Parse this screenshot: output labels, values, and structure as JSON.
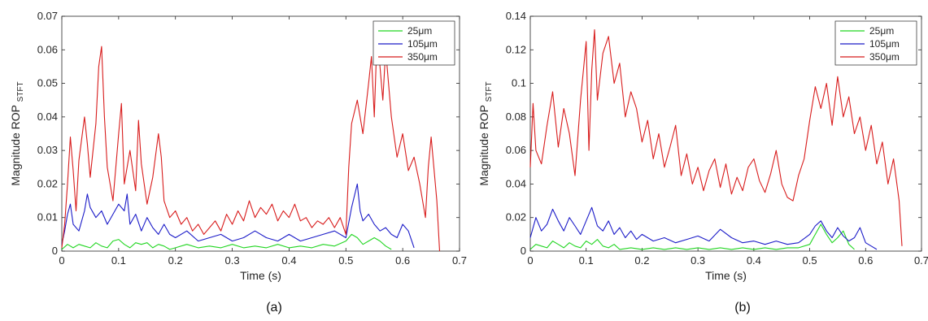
{
  "chart_data": [
    {
      "type": "line",
      "panel_label": "(a)",
      "xlabel": "Time (s)",
      "ylabel": "Magnitude ROP",
      "ylabel_sub": "STFT",
      "xlim": [
        0,
        0.7
      ],
      "ylim": [
        0,
        0.07
      ],
      "xticks": [
        0,
        0.1,
        0.2,
        0.3,
        0.4,
        0.5,
        0.6,
        0.7
      ],
      "xtick_labels": [
        "0",
        "0.1",
        "0.2",
        "0.3",
        "0.4",
        "0.5",
        "0.6",
        "0.7"
      ],
      "yticks": [
        0,
        0.01,
        0.02,
        0.03,
        0.04,
        0.05,
        0.06,
        0.07
      ],
      "ytick_labels": [
        "0",
        "0.01",
        "0.02",
        "0.03",
        "0.04",
        "0.05",
        "0.06",
        "0.07"
      ],
      "grid": false,
      "legend_position": "top-right",
      "series": [
        {
          "name": "25μm",
          "color": "#22d622",
          "x": [
            0,
            0.01,
            0.02,
            0.03,
            0.04,
            0.05,
            0.06,
            0.07,
            0.08,
            0.09,
            0.1,
            0.11,
            0.12,
            0.13,
            0.14,
            0.15,
            0.16,
            0.17,
            0.18,
            0.19,
            0.2,
            0.22,
            0.24,
            0.26,
            0.28,
            0.3,
            0.32,
            0.34,
            0.36,
            0.38,
            0.4,
            0.42,
            0.44,
            0.46,
            0.48,
            0.5,
            0.51,
            0.52,
            0.53,
            0.54,
            0.55,
            0.56,
            0.57,
            0.58
          ],
          "y": [
            0.0005,
            0.002,
            0.001,
            0.002,
            0.0015,
            0.001,
            0.0025,
            0.0015,
            0.001,
            0.003,
            0.0035,
            0.002,
            0.001,
            0.0025,
            0.002,
            0.0025,
            0.001,
            0.002,
            0.0015,
            0.0005,
            0.001,
            0.002,
            0.001,
            0.0015,
            0.001,
            0.002,
            0.001,
            0.0015,
            0.001,
            0.002,
            0.001,
            0.0015,
            0.001,
            0.002,
            0.0015,
            0.003,
            0.005,
            0.004,
            0.002,
            0.003,
            0.004,
            0.003,
            0.0015,
            0.0005
          ]
        },
        {
          "name": "105μm",
          "color": "#1c1cc8",
          "x": [
            0,
            0.005,
            0.01,
            0.015,
            0.02,
            0.03,
            0.04,
            0.045,
            0.05,
            0.06,
            0.07,
            0.08,
            0.09,
            0.1,
            0.11,
            0.115,
            0.12,
            0.13,
            0.14,
            0.15,
            0.16,
            0.17,
            0.18,
            0.19,
            0.2,
            0.22,
            0.24,
            0.26,
            0.28,
            0.3,
            0.32,
            0.34,
            0.36,
            0.38,
            0.4,
            0.42,
            0.44,
            0.46,
            0.48,
            0.5,
            0.51,
            0.52,
            0.525,
            0.53,
            0.54,
            0.55,
            0.56,
            0.57,
            0.58,
            0.59,
            0.6,
            0.61,
            0.62
          ],
          "y": [
            0.002,
            0.006,
            0.011,
            0.014,
            0.008,
            0.006,
            0.012,
            0.017,
            0.013,
            0.01,
            0.012,
            0.008,
            0.011,
            0.014,
            0.012,
            0.017,
            0.008,
            0.011,
            0.006,
            0.01,
            0.007,
            0.005,
            0.008,
            0.005,
            0.004,
            0.006,
            0.003,
            0.004,
            0.005,
            0.003,
            0.004,
            0.006,
            0.004,
            0.003,
            0.005,
            0.003,
            0.004,
            0.005,
            0.006,
            0.004,
            0.013,
            0.02,
            0.012,
            0.009,
            0.011,
            0.008,
            0.006,
            0.007,
            0.005,
            0.004,
            0.008,
            0.006,
            0.001
          ]
        },
        {
          "name": "350μm",
          "color": "#d81c1c",
          "x": [
            0,
            0.005,
            0.01,
            0.015,
            0.02,
            0.025,
            0.03,
            0.04,
            0.045,
            0.05,
            0.06,
            0.065,
            0.07,
            0.075,
            0.08,
            0.09,
            0.1,
            0.105,
            0.11,
            0.12,
            0.13,
            0.135,
            0.14,
            0.15,
            0.16,
            0.17,
            0.175,
            0.18,
            0.19,
            0.2,
            0.21,
            0.22,
            0.23,
            0.24,
            0.25,
            0.26,
            0.27,
            0.28,
            0.29,
            0.3,
            0.31,
            0.32,
            0.33,
            0.34,
            0.35,
            0.36,
            0.37,
            0.38,
            0.39,
            0.4,
            0.41,
            0.42,
            0.43,
            0.44,
            0.45,
            0.46,
            0.47,
            0.48,
            0.49,
            0.5,
            0.505,
            0.51,
            0.52,
            0.53,
            0.54,
            0.545,
            0.55,
            0.555,
            0.56,
            0.565,
            0.57,
            0.58,
            0.59,
            0.6,
            0.61,
            0.62,
            0.63,
            0.64,
            0.645,
            0.65,
            0.66,
            0.665
          ],
          "y": [
            0.001,
            0.008,
            0.02,
            0.034,
            0.024,
            0.012,
            0.027,
            0.04,
            0.032,
            0.022,
            0.038,
            0.055,
            0.061,
            0.04,
            0.025,
            0.015,
            0.035,
            0.044,
            0.02,
            0.03,
            0.018,
            0.039,
            0.026,
            0.014,
            0.022,
            0.035,
            0.028,
            0.015,
            0.01,
            0.012,
            0.008,
            0.01,
            0.006,
            0.008,
            0.005,
            0.007,
            0.009,
            0.006,
            0.011,
            0.008,
            0.012,
            0.009,
            0.015,
            0.01,
            0.013,
            0.011,
            0.014,
            0.009,
            0.012,
            0.01,
            0.014,
            0.009,
            0.01,
            0.007,
            0.009,
            0.008,
            0.01,
            0.007,
            0.01,
            0.005,
            0.025,
            0.038,
            0.045,
            0.035,
            0.05,
            0.058,
            0.04,
            0.065,
            0.055,
            0.045,
            0.06,
            0.04,
            0.028,
            0.035,
            0.024,
            0.028,
            0.02,
            0.01,
            0.025,
            0.034,
            0.015,
            0.0
          ]
        }
      ]
    },
    {
      "type": "line",
      "panel_label": "(b)",
      "xlabel": "Time (s)",
      "ylabel": "Magnitude ROP",
      "ylabel_sub": "STFT",
      "xlim": [
        0,
        0.7
      ],
      "ylim": [
        0,
        0.14
      ],
      "xticks": [
        0,
        0.1,
        0.2,
        0.3,
        0.4,
        0.5,
        0.6,
        0.7
      ],
      "xtick_labels": [
        "0",
        "0.1",
        "0.2",
        "0.3",
        "0.4",
        "0.5",
        "0.6",
        "0.7"
      ],
      "yticks": [
        0,
        0.02,
        0.04,
        0.06,
        0.08,
        0.1,
        0.12,
        0.14
      ],
      "ytick_labels": [
        "0",
        "0.02",
        "0.04",
        "0.06",
        "0.08",
        "0.1",
        "0.12",
        "0.14"
      ],
      "grid": false,
      "legend_position": "top-right",
      "series": [
        {
          "name": "25μm",
          "color": "#22d622",
          "x": [
            0,
            0.01,
            0.02,
            0.03,
            0.04,
            0.05,
            0.06,
            0.07,
            0.08,
            0.09,
            0.1,
            0.11,
            0.12,
            0.13,
            0.14,
            0.15,
            0.16,
            0.18,
            0.2,
            0.22,
            0.24,
            0.26,
            0.28,
            0.3,
            0.32,
            0.34,
            0.36,
            0.38,
            0.4,
            0.42,
            0.44,
            0.46,
            0.48,
            0.5,
            0.51,
            0.52,
            0.53,
            0.54,
            0.55,
            0.56,
            0.57,
            0.58
          ],
          "y": [
            0.001,
            0.004,
            0.003,
            0.002,
            0.006,
            0.004,
            0.002,
            0.005,
            0.003,
            0.002,
            0.006,
            0.004,
            0.007,
            0.003,
            0.002,
            0.004,
            0.001,
            0.002,
            0.001,
            0.002,
            0.001,
            0.002,
            0.001,
            0.002,
            0.001,
            0.002,
            0.001,
            0.002,
            0.001,
            0.002,
            0.001,
            0.002,
            0.002,
            0.004,
            0.01,
            0.016,
            0.01,
            0.005,
            0.008,
            0.012,
            0.004,
            0.001
          ]
        },
        {
          "name": "105μm",
          "color": "#1c1cc8",
          "x": [
            0,
            0.01,
            0.02,
            0.03,
            0.04,
            0.05,
            0.06,
            0.07,
            0.08,
            0.09,
            0.1,
            0.11,
            0.12,
            0.13,
            0.14,
            0.15,
            0.16,
            0.17,
            0.18,
            0.19,
            0.2,
            0.22,
            0.24,
            0.26,
            0.28,
            0.3,
            0.32,
            0.34,
            0.36,
            0.38,
            0.4,
            0.42,
            0.44,
            0.46,
            0.48,
            0.5,
            0.51,
            0.52,
            0.53,
            0.54,
            0.55,
            0.56,
            0.57,
            0.58,
            0.59,
            0.6,
            0.61,
            0.62
          ],
          "y": [
            0.008,
            0.02,
            0.012,
            0.016,
            0.025,
            0.018,
            0.012,
            0.02,
            0.015,
            0.01,
            0.018,
            0.026,
            0.015,
            0.012,
            0.018,
            0.01,
            0.014,
            0.008,
            0.012,
            0.007,
            0.01,
            0.006,
            0.008,
            0.005,
            0.007,
            0.009,
            0.006,
            0.013,
            0.008,
            0.005,
            0.006,
            0.004,
            0.006,
            0.004,
            0.005,
            0.01,
            0.015,
            0.018,
            0.012,
            0.008,
            0.014,
            0.009,
            0.006,
            0.008,
            0.014,
            0.005,
            0.003,
            0.001
          ]
        },
        {
          "name": "350μm",
          "color": "#d81c1c",
          "x": [
            0,
            0.005,
            0.01,
            0.02,
            0.03,
            0.04,
            0.05,
            0.06,
            0.07,
            0.08,
            0.09,
            0.1,
            0.105,
            0.11,
            0.115,
            0.12,
            0.13,
            0.14,
            0.15,
            0.16,
            0.17,
            0.18,
            0.19,
            0.2,
            0.21,
            0.22,
            0.23,
            0.24,
            0.25,
            0.26,
            0.27,
            0.28,
            0.29,
            0.3,
            0.31,
            0.32,
            0.33,
            0.34,
            0.35,
            0.36,
            0.37,
            0.38,
            0.39,
            0.4,
            0.41,
            0.42,
            0.43,
            0.44,
            0.45,
            0.46,
            0.47,
            0.48,
            0.49,
            0.5,
            0.51,
            0.52,
            0.53,
            0.54,
            0.55,
            0.56,
            0.57,
            0.58,
            0.59,
            0.6,
            0.61,
            0.62,
            0.63,
            0.64,
            0.65,
            0.66,
            0.665
          ],
          "y": [
            0.05,
            0.088,
            0.06,
            0.052,
            0.075,
            0.095,
            0.062,
            0.085,
            0.07,
            0.045,
            0.09,
            0.125,
            0.06,
            0.108,
            0.132,
            0.09,
            0.118,
            0.128,
            0.1,
            0.112,
            0.08,
            0.095,
            0.085,
            0.065,
            0.078,
            0.055,
            0.07,
            0.05,
            0.062,
            0.075,
            0.045,
            0.058,
            0.04,
            0.05,
            0.036,
            0.048,
            0.055,
            0.038,
            0.052,
            0.034,
            0.044,
            0.036,
            0.05,
            0.055,
            0.042,
            0.035,
            0.046,
            0.06,
            0.04,
            0.032,
            0.03,
            0.045,
            0.055,
            0.078,
            0.098,
            0.085,
            0.1,
            0.075,
            0.104,
            0.08,
            0.092,
            0.07,
            0.08,
            0.06,
            0.075,
            0.052,
            0.065,
            0.04,
            0.055,
            0.03,
            0.003
          ]
        }
      ]
    }
  ]
}
